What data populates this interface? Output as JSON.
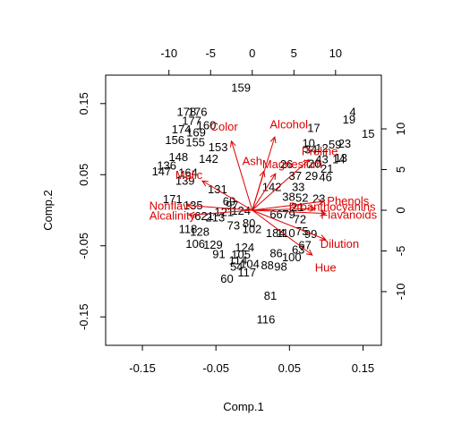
{
  "chart_data": {
    "type": "scatter",
    "subtype": "biplot",
    "title": "",
    "xlabel": "Comp.1",
    "ylabel": "Comp.2",
    "xlim": [
      -0.2,
      0.175
    ],
    "ylim": [
      -0.19,
      0.19
    ],
    "x_ticks": [
      -0.15,
      -0.05,
      0.05,
      0.15
    ],
    "y_ticks": [
      -0.15,
      -0.05,
      0.05,
      0.15
    ],
    "x_tick_labels": [
      "-0.15",
      "-0.05",
      "0.05",
      "0.15"
    ],
    "y_tick_labels": [
      "-0.15",
      "-0.05",
      "0.05",
      "0.15"
    ],
    "top_axis": {
      "lim": [
        -17.6,
        15.5
      ],
      "ticks": [
        -10,
        -5,
        0,
        5,
        10
      ],
      "tick_labels": [
        "-10",
        "-5",
        "0",
        "5",
        "10"
      ]
    },
    "right_axis": {
      "lim": [
        -16.6,
        16.6
      ],
      "ticks": [
        -10,
        -5,
        0,
        5,
        10
      ],
      "tick_labels": [
        "-10",
        "-5",
        "0",
        "5",
        "10"
      ]
    },
    "point_color": "#000000",
    "loading_color": "#dd0000",
    "points": [
      {
        "label": "159",
        "x": -0.016,
        "y": 0.172
      },
      {
        "label": "178",
        "x": -0.09,
        "y": 0.138
      },
      {
        "label": "176",
        "x": -0.075,
        "y": 0.138
      },
      {
        "label": "4",
        "x": 0.136,
        "y": 0.138
      },
      {
        "label": "19",
        "x": 0.131,
        "y": 0.127
      },
      {
        "label": "177",
        "x": -0.083,
        "y": 0.125
      },
      {
        "label": "160",
        "x": -0.063,
        "y": 0.119
      },
      {
        "label": "174",
        "x": -0.097,
        "y": 0.113
      },
      {
        "label": "17",
        "x": 0.083,
        "y": 0.115
      },
      {
        "label": "15",
        "x": 0.157,
        "y": 0.107
      },
      {
        "label": "169",
        "x": -0.077,
        "y": 0.109
      },
      {
        "label": "156",
        "x": -0.106,
        "y": 0.098
      },
      {
        "label": "155",
        "x": -0.078,
        "y": 0.095
      },
      {
        "label": "10",
        "x": 0.076,
        "y": 0.094
      },
      {
        "label": "23",
        "x": 0.125,
        "y": 0.093
      },
      {
        "label": "153",
        "x": -0.047,
        "y": 0.088
      },
      {
        "label": "59",
        "x": 0.112,
        "y": 0.092
      },
      {
        "label": "12",
        "x": 0.094,
        "y": 0.087
      },
      {
        "label": "34",
        "x": 0.079,
        "y": 0.085
      },
      {
        "label": "13",
        "x": 0.12,
        "y": 0.073
      },
      {
        "label": "148",
        "x": -0.101,
        "y": 0.074
      },
      {
        "label": "142",
        "x": -0.06,
        "y": 0.072
      },
      {
        "label": "43",
        "x": 0.094,
        "y": 0.071
      },
      {
        "label": "14",
        "x": 0.117,
        "y": 0.071
      },
      {
        "label": "26",
        "x": 0.046,
        "y": 0.064
      },
      {
        "label": "136",
        "x": -0.117,
        "y": 0.062
      },
      {
        "label": "20",
        "x": 0.084,
        "y": 0.065
      },
      {
        "label": "21",
        "x": 0.101,
        "y": 0.058
      },
      {
        "label": "147",
        "x": -0.124,
        "y": 0.054
      },
      {
        "label": "164",
        "x": -0.088,
        "y": 0.052
      },
      {
        "label": "37",
        "x": 0.058,
        "y": 0.048
      },
      {
        "label": "29",
        "x": 0.08,
        "y": 0.048
      },
      {
        "label": "46",
        "x": 0.099,
        "y": 0.046
      },
      {
        "label": "139",
        "x": -0.092,
        "y": 0.041
      },
      {
        "label": "131",
        "x": -0.048,
        "y": 0.029
      },
      {
        "label": "142",
        "x": 0.026,
        "y": 0.032
      },
      {
        "label": "33",
        "x": 0.062,
        "y": 0.032
      },
      {
        "label": "38",
        "x": 0.049,
        "y": 0.018
      },
      {
        "label": "52",
        "x": 0.067,
        "y": 0.017
      },
      {
        "label": "23",
        "x": 0.09,
        "y": 0.016
      },
      {
        "label": "171",
        "x": -0.109,
        "y": 0.015
      },
      {
        "label": "69",
        "x": -0.032,
        "y": 0.012
      },
      {
        "label": "135",
        "x": -0.081,
        "y": 0.006
      },
      {
        "label": "97",
        "x": -0.028,
        "y": 0.006
      },
      {
        "label": "124",
        "x": -0.016,
        "y": -0.001
      },
      {
        "label": "21",
        "x": 0.061,
        "y": 0.004
      },
      {
        "label": "121",
        "x": -0.039,
        "y": -0.003
      },
      {
        "label": "621",
        "x": -0.066,
        "y": -0.009
      },
      {
        "label": "213",
        "x": -0.051,
        "y": -0.011
      },
      {
        "label": "66",
        "x": 0.032,
        "y": -0.006
      },
      {
        "label": "79",
        "x": 0.049,
        "y": -0.006
      },
      {
        "label": "72",
        "x": 0.064,
        "y": -0.013
      },
      {
        "label": "80",
        "x": -0.005,
        "y": -0.019
      },
      {
        "label": "73",
        "x": -0.026,
        "y": -0.022
      },
      {
        "label": "102",
        "x": -0.001,
        "y": -0.027
      },
      {
        "label": "118",
        "x": -0.088,
        "y": -0.027
      },
      {
        "label": "128",
        "x": -0.072,
        "y": -0.031
      },
      {
        "label": "184",
        "x": 0.031,
        "y": -0.033
      },
      {
        "label": "110",
        "x": 0.045,
        "y": -0.033
      },
      {
        "label": "75",
        "x": 0.067,
        "y": -0.03
      },
      {
        "label": "99",
        "x": 0.079,
        "y": -0.034
      },
      {
        "label": "106",
        "x": -0.078,
        "y": -0.048
      },
      {
        "label": "129",
        "x": -0.054,
        "y": -0.049
      },
      {
        "label": "124",
        "x": -0.011,
        "y": -0.053
      },
      {
        "label": "67",
        "x": 0.071,
        "y": -0.05
      },
      {
        "label": "63",
        "x": 0.062,
        "y": -0.056
      },
      {
        "label": "91",
        "x": -0.046,
        "y": -0.062
      },
      {
        "label": "105",
        "x": -0.016,
        "y": -0.063
      },
      {
        "label": "86",
        "x": 0.032,
        "y": -0.061
      },
      {
        "label": "100",
        "x": 0.053,
        "y": -0.067
      },
      {
        "label": "114",
        "x": -0.02,
        "y": -0.071
      },
      {
        "label": "104",
        "x": -0.004,
        "y": -0.076
      },
      {
        "label": "98",
        "x": 0.038,
        "y": -0.08
      },
      {
        "label": "88",
        "x": 0.02,
        "y": -0.078
      },
      {
        "label": "54",
        "x": -0.022,
        "y": -0.08
      },
      {
        "label": "117",
        "x": -0.008,
        "y": -0.088
      },
      {
        "label": "60",
        "x": -0.035,
        "y": -0.097
      },
      {
        "label": "81",
        "x": 0.024,
        "y": -0.121
      },
      {
        "label": "116",
        "x": 0.018,
        "y": -0.154
      }
    ],
    "loadings": [
      {
        "name": "Color",
        "x": -2.5,
        "y": 8.5,
        "lx": -3.4,
        "ly": 10.2
      },
      {
        "name": "Alcohol",
        "x": 2.7,
        "y": 9.0,
        "lx": 4.4,
        "ly": 10.5
      },
      {
        "name": "Proline",
        "x": 6.8,
        "y": 6.2,
        "lx": 8.1,
        "ly": 7.2
      },
      {
        "name": "Ash",
        "x": 1.4,
        "y": 4.8,
        "lx": 0.0,
        "ly": 6.0
      },
      {
        "name": "Magnesium",
        "x": 2.8,
        "y": 4.5,
        "lx": 4.8,
        "ly": 5.6
      },
      {
        "name": "Malic",
        "x": -6.0,
        "y": 3.6,
        "lx": -7.6,
        "ly": 4.3
      },
      {
        "name": "Phenols",
        "x": 8.6,
        "y": 1.1,
        "lx": 11.5,
        "ly": 1.1
      },
      {
        "name": "Proanthocyanins",
        "x": 7.6,
        "y": 0.2,
        "lx": 9.6,
        "ly": 0.4
      },
      {
        "name": "Flavanoids",
        "x": 8.8,
        "y": -0.4,
        "lx": 11.6,
        "ly": -0.6
      },
      {
        "name": "Dilution",
        "x": 8.8,
        "y": -3.6,
        "lx": 10.5,
        "ly": -4.2
      },
      {
        "name": "Hue",
        "x": 7.2,
        "y": -5.5,
        "lx": 8.8,
        "ly": -7.1
      },
      {
        "name": "Nonflav",
        "x": -7.8,
        "y": 0.6,
        "lx": -10.0,
        "ly": 0.5
      },
      {
        "name": "Alcalinity",
        "x": -7.6,
        "y": -0.6,
        "lx": -9.6,
        "ly": -0.7
      }
    ]
  }
}
